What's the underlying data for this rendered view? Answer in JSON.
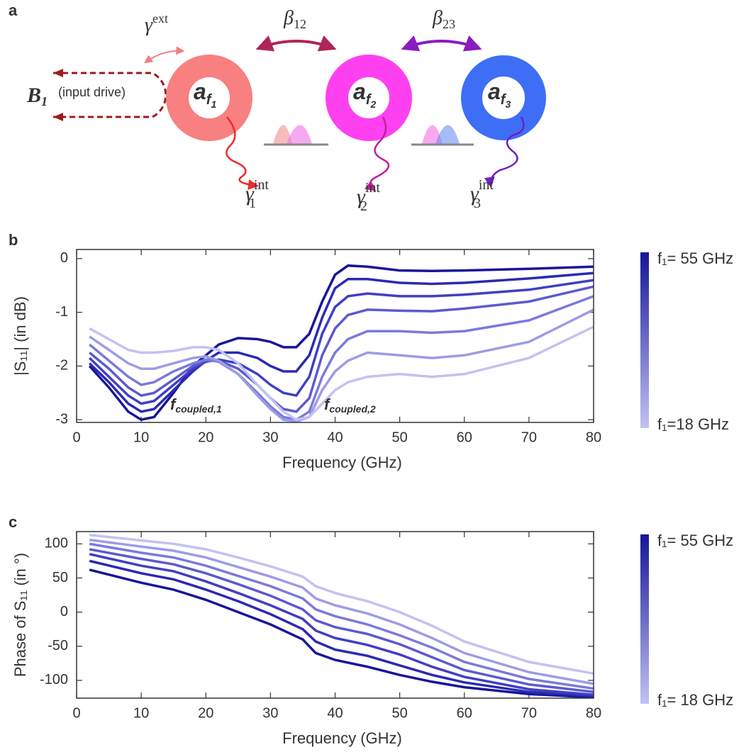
{
  "diagram": {
    "panel_label": "a",
    "input": {
      "label": "B",
      "label_sub": "1",
      "text": "(input drive)"
    },
    "gamma_ext": {
      "symbol": "γ",
      "sup": "ext"
    },
    "couplings": [
      {
        "symbol": "β",
        "sub": "12"
      },
      {
        "symbol": "β",
        "sub": "23"
      }
    ],
    "rings": [
      {
        "label": "a",
        "sub": "f",
        "subsub": "1",
        "gamma": "γ",
        "gamma_sub": "1",
        "gamma_sup": "int"
      },
      {
        "label": "a",
        "sub": "f",
        "subsub": "2",
        "gamma": "γ",
        "gamma_sub": "2",
        "gamma_sup": "int"
      },
      {
        "label": "a",
        "sub": "f",
        "subsub": "3",
        "gamma": "γ",
        "gamma_sub": "3",
        "gamma_sup": "int"
      }
    ]
  },
  "chart_data": [
    {
      "type": "line",
      "panel_label": "b",
      "xlabel": "Frequency (GHz)",
      "ylabel": "|S₁₁| (in dB)",
      "xlim": [
        0,
        80
      ],
      "ylim": [
        -3.05,
        0.17
      ],
      "xticks": [
        0,
        10,
        20,
        30,
        40,
        50,
        60,
        70,
        80
      ],
      "yticks": [
        0,
        -1,
        -2,
        -3
      ],
      "colorbar": {
        "top_label": "f₁= 55 GHz",
        "bottom_label": "f₁=18 GHz"
      },
      "annotations": [
        {
          "text": "f",
          "sub": "coupled,1",
          "color": "#1a1ab8"
        },
        {
          "text": "f",
          "sub": "coupled,2",
          "color": "#9c9ce6"
        }
      ],
      "x": [
        2,
        5,
        8,
        10,
        12,
        15,
        18,
        20,
        22,
        25,
        28,
        30,
        32,
        34,
        36,
        38,
        40,
        42,
        45,
        50,
        55,
        60,
        70,
        80
      ],
      "series": [
        {
          "color": "#16169a",
          "values": [
            -2.0,
            -2.4,
            -2.85,
            -3.0,
            -2.95,
            -2.5,
            -2.0,
            -1.8,
            -1.6,
            -1.48,
            -1.5,
            -1.55,
            -1.65,
            -1.65,
            -1.4,
            -0.8,
            -0.3,
            -0.13,
            -0.15,
            -0.22,
            -0.23,
            -0.22,
            -0.19,
            -0.15
          ]
        },
        {
          "color": "#2a2ab4",
          "values": [
            -1.95,
            -2.3,
            -2.7,
            -2.85,
            -2.8,
            -2.45,
            -2.1,
            -1.9,
            -1.75,
            -1.75,
            -1.85,
            -2.0,
            -2.1,
            -2.1,
            -1.8,
            -1.1,
            -0.55,
            -0.38,
            -0.38,
            -0.45,
            -0.47,
            -0.45,
            -0.37,
            -0.27
          ]
        },
        {
          "color": "#3f3fc4",
          "values": [
            -1.85,
            -2.2,
            -2.55,
            -2.7,
            -2.65,
            -2.35,
            -2.05,
            -1.92,
            -1.88,
            -1.95,
            -2.15,
            -2.35,
            -2.5,
            -2.55,
            -2.2,
            -1.4,
            -0.9,
            -0.7,
            -0.65,
            -0.7,
            -0.7,
            -0.67,
            -0.58,
            -0.4
          ]
        },
        {
          "color": "#5a5ad0",
          "values": [
            -1.75,
            -2.05,
            -2.4,
            -2.55,
            -2.5,
            -2.25,
            -2.0,
            -1.9,
            -1.9,
            -2.05,
            -2.35,
            -2.6,
            -2.8,
            -2.85,
            -2.6,
            -1.8,
            -1.3,
            -1.05,
            -0.95,
            -0.97,
            -0.98,
            -0.93,
            -0.8,
            -0.52
          ]
        },
        {
          "color": "#7a7adc",
          "values": [
            -1.6,
            -1.9,
            -2.2,
            -2.35,
            -2.3,
            -2.1,
            -1.95,
            -1.88,
            -1.92,
            -2.15,
            -2.5,
            -2.75,
            -2.95,
            -3.0,
            -2.85,
            -2.2,
            -1.75,
            -1.5,
            -1.35,
            -1.35,
            -1.38,
            -1.35,
            -1.15,
            -0.7
          ]
        },
        {
          "color": "#9c9ce6",
          "values": [
            -1.45,
            -1.7,
            -1.95,
            -2.05,
            -2.05,
            -1.95,
            -1.85,
            -1.82,
            -1.9,
            -2.15,
            -2.55,
            -2.8,
            -3.0,
            -3.03,
            -2.95,
            -2.45,
            -2.1,
            -1.9,
            -1.75,
            -1.8,
            -1.85,
            -1.8,
            -1.55,
            -0.95
          ]
        },
        {
          "color": "#c2c2f2",
          "values": [
            -1.3,
            -1.5,
            -1.7,
            -1.75,
            -1.75,
            -1.72,
            -1.65,
            -1.65,
            -1.7,
            -1.95,
            -2.35,
            -2.6,
            -2.85,
            -3.0,
            -2.95,
            -2.7,
            -2.45,
            -2.3,
            -2.2,
            -2.15,
            -2.2,
            -2.15,
            -1.85,
            -1.27
          ]
        }
      ]
    },
    {
      "type": "line",
      "panel_label": "c",
      "xlabel": "Frequency (GHz)",
      "ylabel": "Phase of S₁₁ (in °)",
      "xlim": [
        0,
        80
      ],
      "ylim": [
        -126,
        118
      ],
      "xticks": [
        0,
        10,
        20,
        30,
        40,
        50,
        60,
        70,
        80
      ],
      "yticks": [
        100,
        50,
        0,
        -50,
        -100
      ],
      "colorbar": {
        "top_label": "f₁= 55 GHz",
        "bottom_label": "f₁= 18 GHz"
      },
      "x": [
        2,
        10,
        15,
        20,
        25,
        30,
        35,
        37,
        40,
        45,
        50,
        55,
        60,
        70,
        80
      ],
      "series": [
        {
          "color": "#16169a",
          "values": [
            62,
            43,
            33,
            18,
            0,
            -18,
            -40,
            -60,
            -70,
            -80,
            -92,
            -102,
            -110,
            -120,
            -125
          ]
        },
        {
          "color": "#2a2ab4",
          "values": [
            75,
            57,
            48,
            33,
            16,
            -3,
            -25,
            -43,
            -55,
            -64,
            -78,
            -92,
            -103,
            -117,
            -123
          ]
        },
        {
          "color": "#3f3fc4",
          "values": [
            85,
            68,
            60,
            45,
            28,
            10,
            -10,
            -27,
            -38,
            -48,
            -62,
            -80,
            -95,
            -113,
            -121
          ]
        },
        {
          "color": "#5a5ad0",
          "values": [
            92,
            78,
            70,
            57,
            41,
            24,
            4,
            -12,
            -22,
            -32,
            -47,
            -66,
            -85,
            -106,
            -117
          ]
        },
        {
          "color": "#7a7adc",
          "values": [
            100,
            87,
            80,
            68,
            53,
            38,
            20,
            4,
            -6,
            -18,
            -34,
            -52,
            -73,
            -98,
            -112
          ]
        },
        {
          "color": "#9c9ce6",
          "values": [
            106,
            96,
            90,
            80,
            66,
            52,
            36,
            20,
            10,
            -2,
            -18,
            -38,
            -60,
            -88,
            -105
          ]
        },
        {
          "color": "#c2c2f2",
          "values": [
            113,
            105,
            100,
            92,
            80,
            67,
            52,
            38,
            28,
            16,
            0,
            -20,
            -43,
            -73,
            -90
          ]
        }
      ]
    }
  ]
}
